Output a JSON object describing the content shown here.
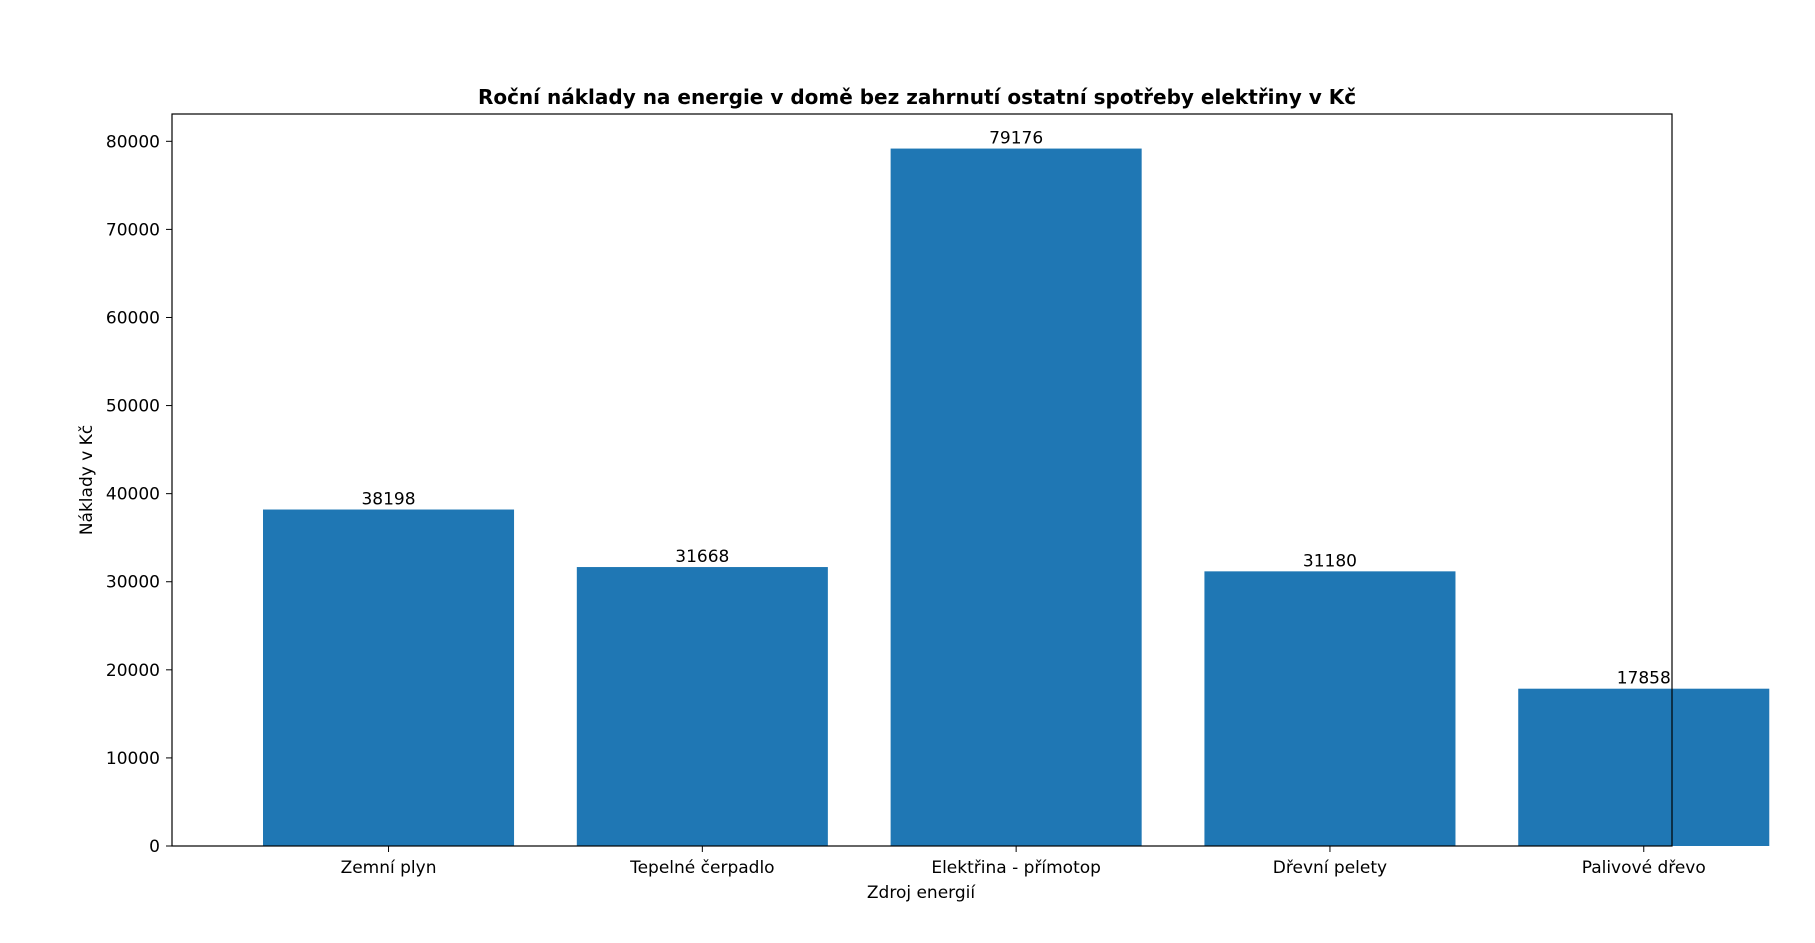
{
  "chart_data": {
    "type": "bar",
    "title": "Roční náklady na energie v domě bez zahrnutí ostatní spotřeby elektřiny v Kč",
    "xlabel": "Zdroj energií",
    "ylabel": "Náklady v Kč",
    "categories": [
      "Zemní plyn",
      "Tepelné čerpadlo",
      "Elektřina - přímotop",
      "Dřevní pelety",
      "Palivové dřevo"
    ],
    "values": [
      38198,
      31668,
      79176,
      31180,
      17858
    ],
    "ylim": [
      0,
      83100
    ],
    "yticks": [
      0,
      10000,
      20000,
      30000,
      40000,
      50000,
      60000,
      70000,
      80000
    ],
    "bar_color": "#1f77b4",
    "grid": false,
    "legend": "none"
  }
}
